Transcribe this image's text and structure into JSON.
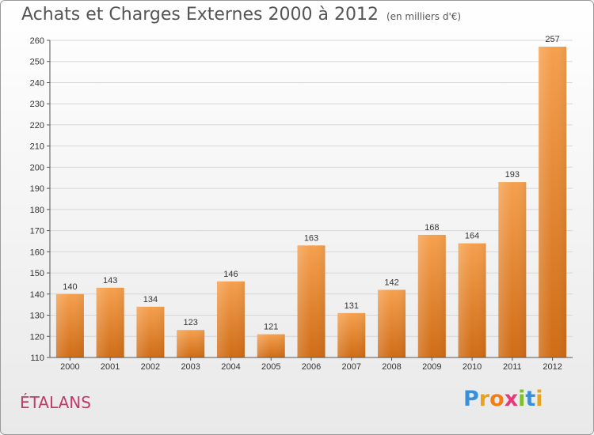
{
  "header": {
    "title": "Achats et Charges Externes 2000 à 2012",
    "subtitle": "(en milliers d'€)"
  },
  "footer": {
    "commune": "ÉTALANS",
    "logo_letters": [
      {
        "ch": "P",
        "color": "#3a8fd8"
      },
      {
        "ch": "r",
        "color": "#e8a21e"
      },
      {
        "ch": "o",
        "color": "#f07f1a"
      },
      {
        "ch": "x",
        "color": "#e53a79"
      },
      {
        "ch": "i",
        "color": "#7bbf2a"
      },
      {
        "ch": "t",
        "color": "#3a8fd8"
      },
      {
        "ch": "i",
        "color": "#e8a21e"
      }
    ]
  },
  "chart_data": {
    "type": "bar",
    "title": "Achats et Charges Externes 2000 à 2012",
    "subtitle": "(en milliers d'€)",
    "categories": [
      "2000",
      "2001",
      "2002",
      "2003",
      "2004",
      "2005",
      "2006",
      "2007",
      "2008",
      "2009",
      "2010",
      "2011",
      "2012"
    ],
    "values": [
      140,
      143,
      134,
      123,
      146,
      121,
      163,
      131,
      142,
      168,
      164,
      193,
      257
    ],
    "ylim": [
      110,
      260
    ],
    "yticks": [
      110,
      120,
      130,
      140,
      150,
      160,
      170,
      180,
      190,
      200,
      210,
      220,
      230,
      240,
      250,
      260
    ],
    "grid": true,
    "bar_color_top": "#f5a04e",
    "bar_color_bottom": "#cf6c16",
    "data_labels": true
  }
}
